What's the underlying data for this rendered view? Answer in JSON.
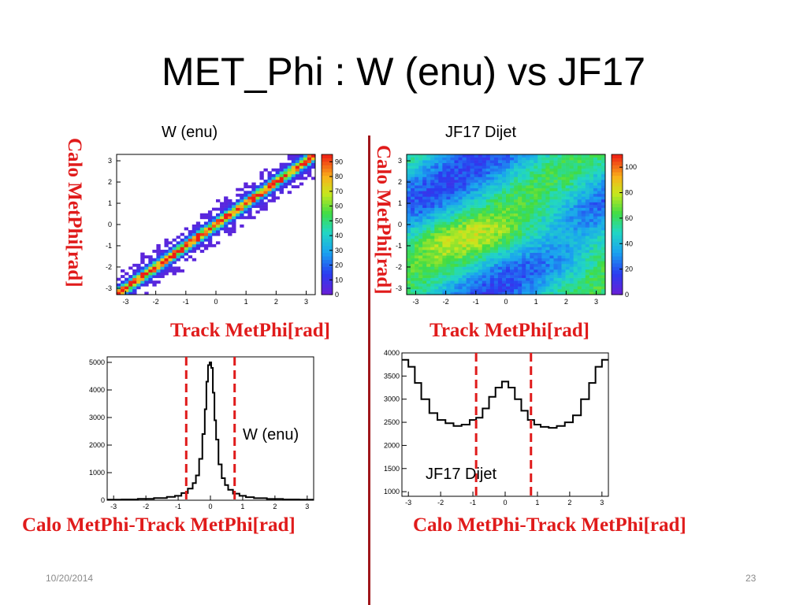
{
  "slide": {
    "title": "MET_Phi  : W (enu) vs JF17",
    "panel_left_title": "W (enu)",
    "panel_right_title": "JF17 Dijet",
    "ylabel_2d_left": "Calo  MetPhi[rad]",
    "ylabel_2d_right": "Calo  MetPhi[rad]",
    "xlabel_2d_left": "Track MetPhi[rad]",
    "xlabel_2d_right": "Track MetPhi[rad]",
    "xlabel_1d_left": "Calo MetPhi-Track MetPhi[rad]",
    "xlabel_1d_right": "Calo MetPhi-Track MetPhi[rad]",
    "date": "10/20/2014",
    "page_number": "23"
  },
  "colors": {
    "label_red": "#e01b1b",
    "divider": "#a0171c",
    "cut_line": "#e01b1b"
  },
  "chart_data": [
    {
      "type": "heatmap",
      "name": "W (enu)",
      "x_range": [
        -3.3,
        3.3
      ],
      "y_range": [
        -3.3,
        3.3
      ],
      "x_ticks": [
        -3,
        -2,
        -1,
        0,
        1,
        2,
        3
      ],
      "y_ticks": [
        -3,
        -2,
        -1,
        0,
        1,
        2,
        3
      ],
      "colorbar_ticks": [
        0,
        10,
        20,
        30,
        40,
        50,
        60,
        70,
        80,
        90
      ],
      "z_max": 95,
      "pattern": "narrow diagonal band y = x, peak about 95 on the diagonal, sparse low counts elsewhere"
    },
    {
      "type": "heatmap",
      "name": "JF17 Dijet",
      "x_range": [
        -3.3,
        3.3
      ],
      "y_range": [
        -3.3,
        3.3
      ],
      "x_ticks": [
        -3,
        -2,
        -1,
        0,
        1,
        2,
        3
      ],
      "y_ticks": [
        -3,
        -2,
        -1,
        0,
        1,
        2,
        3
      ],
      "colorbar_ticks": [
        0,
        20,
        40,
        60,
        80,
        100
      ],
      "z_max": 110,
      "pattern": "broad diffuse distribution, lower counts (about 20-40) in upper half, higher counts (about 60-90) in a band around y = -1 to -0.5"
    },
    {
      "type": "line",
      "name": "W (enu)",
      "legend_label": "W (enu)",
      "x_range": [
        -3.2,
        3.2
      ],
      "y_range": [
        0,
        5200
      ],
      "x_ticks": [
        -3,
        -2,
        -1,
        0,
        1,
        2,
        3
      ],
      "y_ticks": [
        0,
        1000,
        2000,
        3000,
        4000,
        5000
      ],
      "cut_lines": [
        -0.75,
        0.75
      ],
      "x": [
        -3.0,
        -2.5,
        -2.0,
        -1.5,
        -1.2,
        -1.0,
        -0.8,
        -0.6,
        -0.5,
        -0.4,
        -0.3,
        -0.2,
        -0.15,
        -0.1,
        -0.05,
        0.0,
        0.05,
        0.1,
        0.15,
        0.2,
        0.3,
        0.4,
        0.5,
        0.6,
        0.8,
        1.0,
        1.2,
        1.5,
        2.0,
        2.5,
        3.0
      ],
      "y": [
        20,
        30,
        50,
        80,
        120,
        160,
        260,
        420,
        620,
        900,
        1500,
        2400,
        3300,
        4300,
        4900,
        5000,
        4800,
        3900,
        2900,
        2200,
        1300,
        800,
        550,
        380,
        240,
        160,
        110,
        75,
        45,
        30,
        20
      ]
    },
    {
      "type": "line",
      "name": "JF17 Dijet",
      "legend_label": "JF17 Dijet",
      "x_range": [
        -3.2,
        3.2
      ],
      "y_range": [
        900,
        4000
      ],
      "x_ticks": [
        -3,
        -2,
        -1,
        0,
        1,
        2,
        3
      ],
      "y_ticks": [
        1000,
        1500,
        2000,
        2500,
        3000,
        3500,
        4000
      ],
      "cut_lines": [
        -0.9,
        0.8
      ],
      "x": [
        -3.1,
        -2.9,
        -2.7,
        -2.5,
        -2.2,
        -2.0,
        -1.7,
        -1.5,
        -1.2,
        -1.0,
        -0.8,
        -0.6,
        -0.4,
        -0.2,
        0.0,
        0.2,
        0.4,
        0.6,
        0.8,
        1.0,
        1.2,
        1.5,
        1.7,
        2.0,
        2.2,
        2.5,
        2.7,
        2.9,
        3.1
      ],
      "y": [
        3850,
        3700,
        3350,
        3000,
        2700,
        2550,
        2480,
        2420,
        2450,
        2550,
        2600,
        2800,
        3050,
        3250,
        3380,
        3250,
        3000,
        2750,
        2550,
        2450,
        2400,
        2380,
        2420,
        2500,
        2650,
        3000,
        3350,
        3700,
        3850
      ]
    }
  ]
}
